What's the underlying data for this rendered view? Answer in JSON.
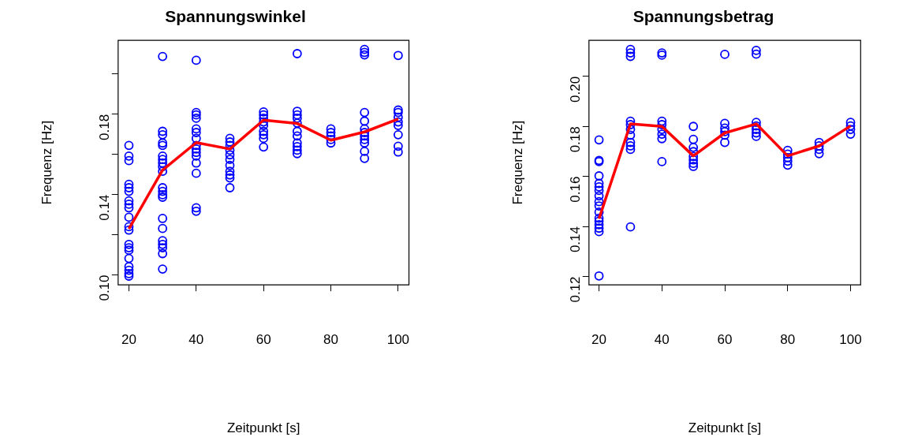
{
  "chart_data": [
    {
      "type": "scatter",
      "title": "Spannungswinkel",
      "xlabel": "Zeitpunkt [s]",
      "ylabel": "Frequenz [Hz]",
      "xlim": [
        16.8,
        103.2
      ],
      "ylim": [
        0.095,
        0.2168
      ],
      "xticks": [
        20,
        40,
        60,
        80,
        100
      ],
      "yticks": [
        {
          "value": 0.1,
          "label": "0.10"
        },
        {
          "value": 0.12,
          "label": null
        },
        0.14,
        {
          "value": 0.16,
          "label": null
        },
        0.18,
        {
          "value": 0.2,
          "label": null
        }
      ],
      "grid": false,
      "legend": false,
      "series": [
        {
          "type": "scatter",
          "marker": "circle",
          "color": "#0000ff",
          "x": [
            20,
            20,
            20,
            20,
            20,
            20,
            20,
            20,
            20,
            20,
            20,
            20,
            20,
            20,
            20,
            20,
            20,
            20,
            20,
            20,
            30,
            30,
            30,
            30,
            30,
            30,
            30,
            30,
            30,
            30,
            30,
            30,
            30,
            30,
            30,
            30,
            30,
            30,
            30,
            30,
            30,
            40,
            40,
            40,
            40,
            40,
            40,
            40,
            40,
            40,
            40,
            40,
            40,
            40,
            40,
            40,
            50,
            50,
            50,
            50,
            50,
            50,
            50,
            50,
            50,
            50,
            50,
            60,
            60,
            60,
            60,
            60,
            60,
            60,
            60,
            60,
            70,
            70,
            70,
            70,
            70,
            70,
            70,
            70,
            70,
            70,
            70,
            80,
            80,
            80,
            80,
            80,
            90,
            90,
            90,
            90,
            90,
            90,
            90,
            90,
            90,
            90,
            90,
            90,
            100,
            100,
            100,
            100,
            100,
            100,
            100,
            100,
            100
          ],
          "values": [
            0.1645,
            0.1592,
            0.1569,
            0.1451,
            0.1434,
            0.1416,
            0.1369,
            0.1352,
            0.1334,
            0.1287,
            0.124,
            0.1223,
            0.1152,
            0.1135,
            0.1123,
            0.1082,
            0.1041,
            0.1023,
            0.1006,
            0.0994,
            0.2088,
            0.1715,
            0.1698,
            0.1657,
            0.1645,
            0.1592,
            0.1575,
            0.1557,
            0.1539,
            0.1516,
            0.1434,
            0.1416,
            0.1399,
            0.1387,
            0.1281,
            0.1231,
            0.117,
            0.1152,
            0.1135,
            0.1106,
            0.1029,
            0.2069,
            0.1809,
            0.1797,
            0.178,
            0.1727,
            0.1709,
            0.168,
            0.1645,
            0.1627,
            0.161,
            0.1592,
            0.1557,
            0.1506,
            0.1334,
            0.1317,
            0.168,
            0.1662,
            0.1645,
            0.1621,
            0.1598,
            0.1575,
            0.1545,
            0.1516,
            0.1498,
            0.1483,
            0.1434,
            0.1812,
            0.1797,
            0.178,
            0.1762,
            0.1744,
            0.1715,
            0.1698,
            0.168,
            0.1637,
            0.2102,
            0.1815,
            0.1797,
            0.178,
            0.1756,
            0.1715,
            0.1692,
            0.1657,
            0.1639,
            0.1621,
            0.1604,
            0.1727,
            0.1709,
            0.1692,
            0.1674,
            0.1657,
            0.2123,
            0.2108,
            0.2096,
            0.1809,
            0.1766,
            0.1727,
            0.1709,
            0.1692,
            0.1674,
            0.1657,
            0.1615,
            0.158,
            0.2093,
            0.1821,
            0.1809,
            0.1785,
            0.1762,
            0.1744,
            0.1698,
            0.1641,
            0.1612
          ]
        },
        {
          "type": "line",
          "marker": "none",
          "color": "#ff0000",
          "x": [
            20,
            30,
            40,
            50,
            60,
            70,
            80,
            90,
            100
          ],
          "values": [
            0.1229,
            0.1522,
            0.1659,
            0.1627,
            0.1771,
            0.1754,
            0.1671,
            0.1712,
            0.1776
          ]
        }
      ]
    },
    {
      "type": "scatter",
      "title": "Spannungsbetrag",
      "xlabel": "Zeitpunkt [s]",
      "ylabel": "Frequenz [Hz]",
      "xlim": [
        16.8,
        103.2
      ],
      "ylim": [
        0.1166,
        0.2144
      ],
      "xticks": [
        20,
        40,
        60,
        80,
        100
      ],
      "yticks": [
        0.12,
        0.14,
        0.16,
        0.18,
        {
          "value": 0.2,
          "label": "0.20"
        }
      ],
      "grid": false,
      "legend": false,
      "series": [
        {
          "type": "scatter",
          "marker": "circle",
          "color": "#0000ff",
          "x": [
            20,
            20,
            20,
            20,
            20,
            20,
            20,
            20,
            20,
            20,
            20,
            20,
            20,
            20,
            20,
            20,
            20,
            30,
            30,
            30,
            30,
            30,
            30,
            30,
            30,
            30,
            30,
            30,
            40,
            40,
            40,
            40,
            40,
            40,
            40,
            40,
            50,
            50,
            50,
            50,
            50,
            50,
            50,
            50,
            60,
            60,
            60,
            60,
            60,
            60,
            70,
            70,
            70,
            70,
            70,
            70,
            70,
            80,
            80,
            80,
            80,
            80,
            90,
            90,
            90,
            90,
            100,
            100,
            100,
            100
          ],
          "values": [
            0.1746,
            0.1664,
            0.1659,
            0.1602,
            0.1572,
            0.1558,
            0.1544,
            0.1522,
            0.1499,
            0.1482,
            0.1457,
            0.1433,
            0.1421,
            0.1407,
            0.1393,
            0.1379,
            0.1202,
            0.2108,
            0.2094,
            0.208,
            0.1821,
            0.1807,
            0.1788,
            0.1765,
            0.1736,
            0.1722,
            0.1708,
            0.1398,
            0.2094,
            0.2085,
            0.1821,
            0.1807,
            0.1788,
            0.1769,
            0.1751,
            0.1659,
            0.18,
            0.1748,
            0.1716,
            0.1699,
            0.168,
            0.1666,
            0.1652,
            0.164,
            0.2088,
            0.1812,
            0.1793,
            0.1779,
            0.1765,
            0.1736,
            0.2104,
            0.2089,
            0.1816,
            0.1802,
            0.1788,
            0.1774,
            0.176,
            0.1704,
            0.1689,
            0.1675,
            0.1661,
            0.1645,
            0.1736,
            0.1722,
            0.1708,
            0.1691,
            0.1816,
            0.1802,
            0.1788,
            0.1769
          ]
        },
        {
          "type": "line",
          "marker": "none",
          "color": "#ff0000",
          "x": [
            20,
            30,
            40,
            50,
            60,
            70,
            80,
            90,
            100
          ],
          "values": [
            0.1431,
            0.181,
            0.18,
            0.1682,
            0.1774,
            0.181,
            0.1682,
            0.1722,
            0.1802
          ]
        }
      ]
    }
  ]
}
